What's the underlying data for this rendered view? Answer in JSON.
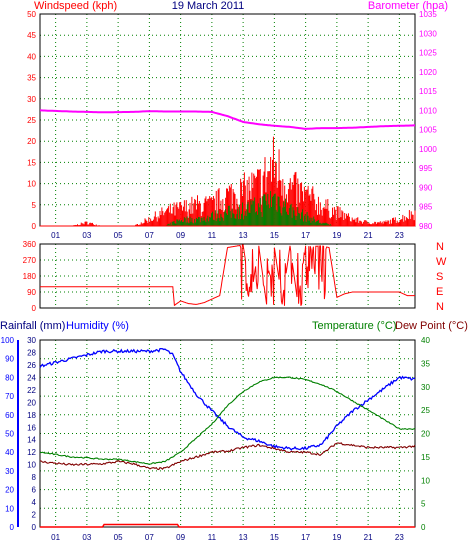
{
  "chart_data": [
    {
      "type": "line",
      "header": {
        "left_label": "Windspeed (kph)",
        "center_label": "19 March 2011",
        "right_label": "Barometer (hpa)"
      },
      "x_ticks": [
        "01",
        "03",
        "05",
        "07",
        "09",
        "11",
        "13",
        "15",
        "17",
        "19",
        "21",
        "23"
      ],
      "left_axis": {
        "ylim": [
          0,
          50
        ],
        "ticks": [
          0,
          5,
          10,
          15,
          20,
          25,
          30,
          35,
          40,
          45,
          50
        ]
      },
      "right_axis": {
        "ylim": [
          980,
          1035
        ],
        "ticks": [
          980,
          985,
          990,
          995,
          1000,
          1005,
          1010,
          1015,
          1020,
          1025,
          1030,
          1035
        ]
      },
      "colors": {
        "gust": "#ff0000",
        "wind": "#008000",
        "barometer": "#ff00ff",
        "axis": "#000080"
      },
      "series": [
        {
          "name": "Barometer",
          "axis": "right",
          "x": [
            0,
            2,
            4,
            6,
            7,
            8,
            9,
            10,
            11,
            12,
            13,
            14,
            15,
            16,
            17,
            18,
            19,
            20,
            21,
            22,
            23,
            24
          ],
          "values": [
            1010,
            1009.7,
            1009.5,
            1009.6,
            1009.8,
            1009.7,
            1009.7,
            1009.7,
            1009.6,
            1008.5,
            1007,
            1006.4,
            1006,
            1005.7,
            1005.2,
            1005.4,
            1005.4,
            1005.5,
            1005.7,
            1005.9,
            1006,
            1006.1
          ]
        },
        {
          "name": "Gust",
          "axis": "left",
          "x": [
            0,
            1,
            2,
            3,
            4,
            5,
            6,
            7,
            8,
            9,
            10,
            11,
            12,
            13,
            14,
            15,
            16,
            17,
            18,
            19,
            20,
            21,
            22,
            23,
            24
          ],
          "values": [
            0,
            0,
            0,
            1,
            0,
            0,
            0,
            2,
            4,
            5,
            6,
            6,
            9,
            10,
            12,
            18,
            11,
            9,
            6,
            4,
            2,
            1,
            1,
            2,
            4
          ]
        },
        {
          "name": "Wind",
          "axis": "left",
          "x": [
            0,
            8,
            9,
            10,
            11,
            12,
            13,
            14,
            15,
            16,
            17,
            18,
            19,
            20,
            24
          ],
          "values": [
            0,
            0,
            2,
            2,
            3,
            4,
            5,
            6,
            9,
            5,
            3,
            1,
            0,
            0,
            0
          ]
        }
      ]
    },
    {
      "type": "line",
      "direction_labels": [
        "N",
        "W",
        "S",
        "E",
        "N"
      ],
      "left_axis": {
        "ylim": [
          0,
          360
        ],
        "ticks": [
          0,
          90,
          180,
          270,
          360
        ]
      },
      "series": [
        {
          "name": "Wind Direction",
          "x": [
            0,
            8.5,
            8.6,
            9,
            9.5,
            10,
            10.5,
            11,
            11.5,
            12,
            13,
            13.5,
            14,
            14.5,
            15,
            15.5,
            16,
            16.5,
            17,
            17.5,
            18,
            18.5,
            19,
            19.5,
            20,
            21,
            22,
            23,
            23.5,
            24
          ],
          "values": [
            120,
            120,
            15,
            40,
            25,
            20,
            30,
            50,
            70,
            340,
            355,
            60,
            350,
            20,
            340,
            40,
            350,
            30,
            350,
            345,
            350,
            340,
            60,
            80,
            90,
            90,
            90,
            90,
            70,
            70
          ]
        }
      ]
    },
    {
      "type": "line",
      "header": {
        "left_label_a": "Rainfall (mm)",
        "left_label_b": "Humidity (%)",
        "right_label_a": "Temperature (°C)",
        "right_label_b": "Dew Point (°C)"
      },
      "humidity_axis": {
        "ylim": [
          0,
          100
        ],
        "ticks": [
          0,
          10,
          20,
          30,
          40,
          50,
          60,
          70,
          80,
          90,
          100
        ]
      },
      "rain_axis": {
        "ylim": [
          0,
          30
        ],
        "ticks": [
          0,
          2,
          4,
          6,
          8,
          10,
          12,
          14,
          16,
          18,
          20,
          22,
          24,
          26,
          28,
          30
        ]
      },
      "temp_axis": {
        "ylim": [
          0,
          40
        ],
        "ticks": [
          0,
          5,
          10,
          15,
          20,
          25,
          30,
          35,
          40
        ]
      },
      "colors": {
        "humidity": "#0000ff",
        "temperature": "#008000",
        "dew_point": "#800000",
        "rainfall": "#ff0000"
      },
      "series": [
        {
          "name": "Humidity",
          "axis": "humidity",
          "x": [
            0,
            1,
            2,
            3,
            4,
            5,
            6,
            7,
            8,
            8.5,
            9,
            10,
            11,
            12,
            13,
            14,
            15,
            16,
            17,
            18,
            19,
            20,
            21,
            22,
            23,
            24
          ],
          "values": [
            86,
            88,
            90,
            92,
            94,
            94,
            94,
            94,
            95,
            92,
            83,
            71,
            62,
            54,
            48,
            46,
            43,
            42,
            42,
            44,
            54,
            62,
            68,
            74,
            80,
            79
          ]
        },
        {
          "name": "Temperature",
          "axis": "temp",
          "x": [
            0,
            1,
            2,
            3,
            4,
            5,
            6,
            7,
            8,
            9,
            10,
            11,
            12,
            13,
            14,
            15,
            16,
            17,
            18,
            19,
            20,
            21,
            22,
            23,
            24
          ],
          "values": [
            16,
            15.5,
            15,
            14.8,
            14.5,
            14.5,
            14,
            13.5,
            14,
            16,
            19,
            22,
            26,
            29,
            31,
            32,
            32,
            31.5,
            30.5,
            29,
            27,
            25,
            23,
            21,
            21
          ]
        },
        {
          "name": "Dew Point",
          "axis": "temp",
          "x": [
            0,
            2,
            4,
            5,
            6,
            7,
            8,
            9,
            10,
            11,
            12,
            13,
            14,
            15,
            16,
            17,
            18,
            19,
            20,
            21,
            22,
            23,
            24
          ],
          "values": [
            14,
            13.3,
            13.5,
            14,
            13.5,
            12.5,
            12.5,
            14,
            15,
            16,
            16.2,
            17,
            17.5,
            16.8,
            16,
            16,
            15.5,
            18,
            17.5,
            17,
            17,
            17,
            17.3
          ]
        },
        {
          "name": "Rainfall",
          "axis": "rain",
          "x": [
            0,
            4,
            4.1,
            8.8,
            8.9,
            24
          ],
          "values": [
            0,
            0,
            0.4,
            0.4,
            0,
            0
          ]
        }
      ]
    }
  ]
}
